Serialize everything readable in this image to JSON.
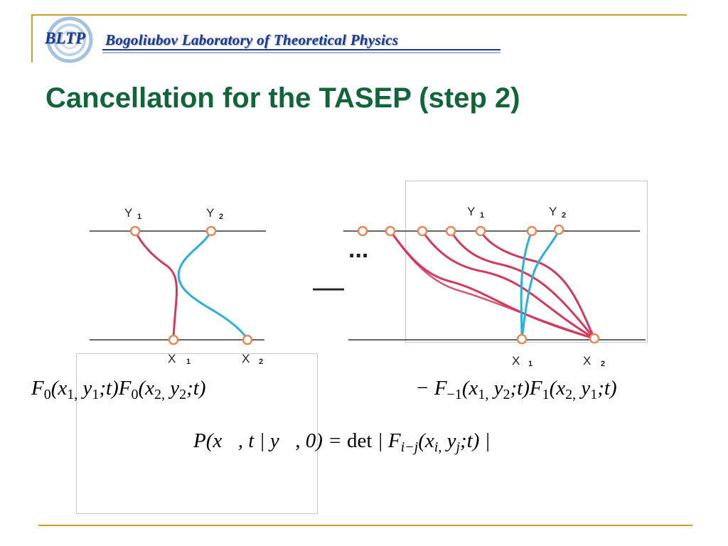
{
  "header": {
    "logo_abbr": "BLTP",
    "lab_name": "Bogoliubov Laboratory of Theoretical Physics",
    "accent_color": "#c9a227",
    "logo_color": "#1f3c8c"
  },
  "slide": {
    "title": "Cancellation for the TASEP (step 2)",
    "title_color": "#12653a"
  },
  "diagram_left": {
    "top_labels": [
      "Y",
      "Y"
    ],
    "top_subs": [
      "1",
      "2"
    ],
    "bottom_labels": [
      "X",
      "X"
    ],
    "bottom_subs": [
      "1",
      "2"
    ]
  },
  "operator": {
    "minus": "—",
    "ellipsis": "..."
  },
  "diagram_right": {
    "top_labels": [
      "Y",
      "Y"
    ],
    "top_subs": [
      "1",
      "2"
    ],
    "bottom_labels": [
      "X",
      "X"
    ],
    "bottom_subs": [
      "1",
      "2"
    ]
  },
  "path_colors": {
    "red": "#d13a5e",
    "blue": "#2bb0d6",
    "node": "#e8875a"
  },
  "formulas": {
    "left": {
      "f1": "F",
      "f1_sub": "0",
      "f1_args_a": "(x",
      "f1_args_a_sub": "1,",
      "f1_args_b": " y",
      "f1_args_b_sub": "1",
      "f1_args_c": ";t)",
      "f2": "F",
      "f2_sub": "0",
      "f2_args_a": "(x",
      "f2_args_a_sub": "2,",
      "f2_args_b": " y",
      "f2_args_b_sub": "2",
      "f2_args_c": ";t)"
    },
    "right": {
      "prefix": "− F",
      "f1_sub": "−1",
      "f1_args_a": "(x",
      "f1_args_a_sub": "1,",
      "f1_args_b": " y",
      "f1_args_b_sub": "2",
      "f1_args_c": ";t)",
      "f2": "F",
      "f2_sub": "1",
      "f2_args_a": "(x",
      "f2_args_a_sub": "2,",
      "f2_args_b": " y",
      "f2_args_b_sub": "1",
      "f2_args_c": ";t)"
    },
    "det": {
      "lhs": "P(x⃗, t | y⃗, 0) = ",
      "det": "det",
      "bar_open": " | F",
      "sub": "i−j",
      "args_a": "(x",
      "args_a_sub": "i,",
      "args_b": " y",
      "args_b_sub": "j",
      "args_c": ";t) |"
    }
  }
}
